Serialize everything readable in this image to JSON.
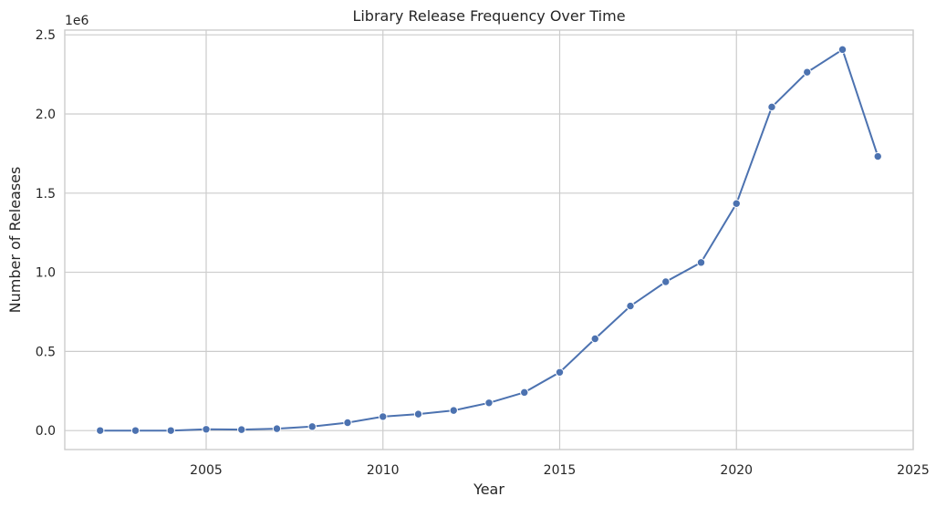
{
  "chart_data": {
    "type": "line",
    "title": "Library Release Frequency Over Time",
    "xlabel": "Year",
    "ylabel": "Number of Releases",
    "y_offset_label": "1e6",
    "xlim": [
      2001,
      2025
    ],
    "ylim": [
      -0.12,
      2.53
    ],
    "x_ticks": [
      2005,
      2010,
      2015,
      2020,
      2025
    ],
    "x_tick_labels": [
      "2005",
      "2010",
      "2015",
      "2020",
      "2025"
    ],
    "y_ticks": [
      0.0,
      0.5,
      1.0,
      1.5,
      2.0,
      2.5
    ],
    "y_tick_labels": [
      "0.0",
      "0.5",
      "1.0",
      "1.5",
      "2.0",
      "2.5"
    ],
    "grid": true,
    "line_color": "#4c72b0",
    "x": [
      2002,
      2003,
      2004,
      2005,
      2006,
      2007,
      2008,
      2009,
      2010,
      2011,
      2012,
      2013,
      2014,
      2015,
      2016,
      2017,
      2018,
      2019,
      2020,
      2021,
      2022,
      2023,
      2024
    ],
    "values": [
      0.0,
      0.0,
      0.0,
      0.008,
      0.006,
      0.012,
      0.025,
      0.05,
      0.088,
      0.104,
      0.127,
      0.175,
      0.241,
      0.368,
      0.58,
      0.787,
      0.94,
      1.062,
      1.434,
      2.044,
      2.264,
      2.407,
      1.732
    ]
  }
}
